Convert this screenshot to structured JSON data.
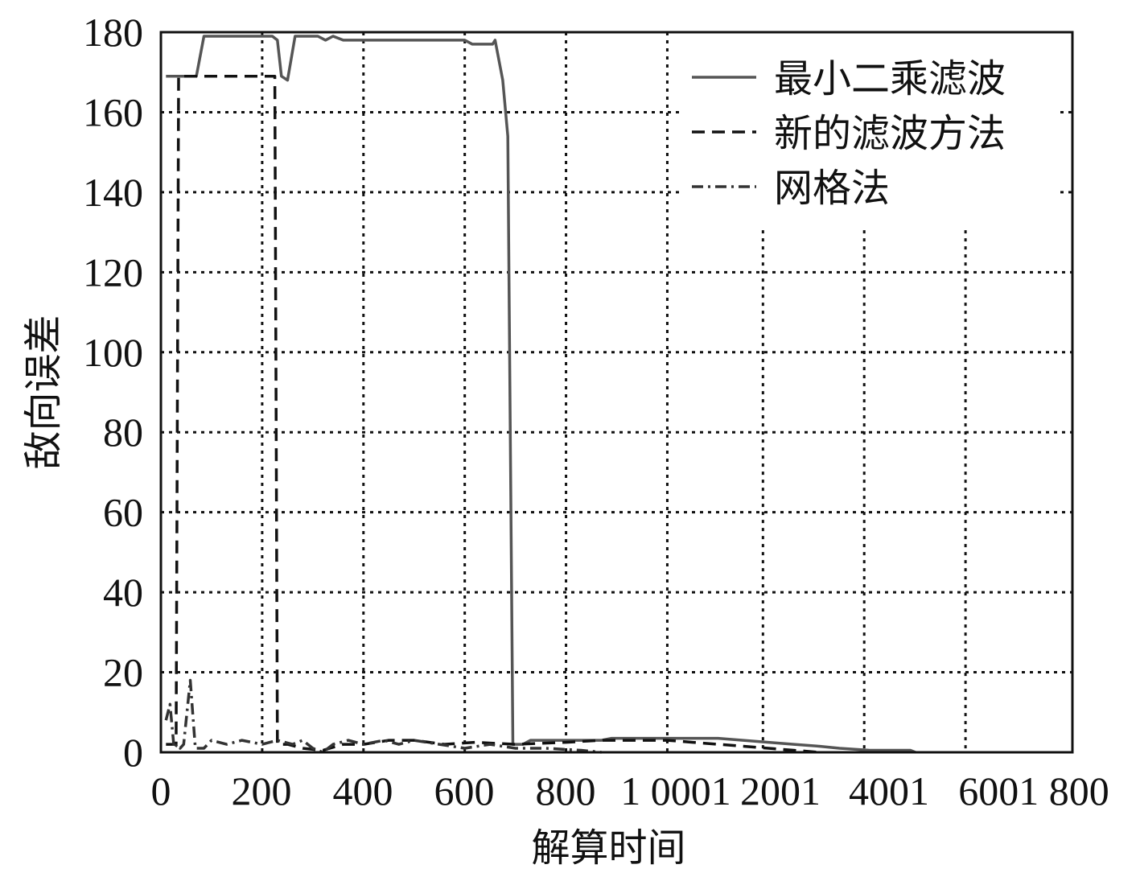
{
  "chart_data": {
    "type": "line",
    "title": "",
    "xlabel": "解算时间",
    "ylabel": "敌向误差",
    "xlim": [
      0,
      1800
    ],
    "ylim": [
      0,
      180
    ],
    "grid": true,
    "grid_style": "dotted",
    "legend_position": "top-right",
    "x_tick_labels": [
      "0",
      "200",
      "400",
      "600",
      "800",
      "1 000",
      "1 200",
      "1 400",
      "1 600",
      "1 800"
    ],
    "x_tick_labels_rendered": [
      "0",
      "200",
      "400",
      "600",
      "800",
      "1 0001",
      "2001",
      "4001",
      "6001 800"
    ],
    "y_ticks": [
      0,
      20,
      40,
      60,
      80,
      100,
      120,
      140,
      160,
      180
    ],
    "series": [
      {
        "name": "最小二乘滤波",
        "color": "#555555",
        "style": "solid",
        "points": [
          [
            10,
            169
          ],
          [
            35,
            169
          ],
          [
            70,
            169
          ],
          [
            85,
            179
          ],
          [
            150,
            179
          ],
          [
            220,
            179
          ],
          [
            230,
            178
          ],
          [
            238,
            169
          ],
          [
            250,
            168
          ],
          [
            265,
            179
          ],
          [
            310,
            179
          ],
          [
            325,
            178
          ],
          [
            340,
            179
          ],
          [
            360,
            178
          ],
          [
            600,
            178
          ],
          [
            615,
            177
          ],
          [
            655,
            177
          ],
          [
            660,
            178
          ],
          [
            675,
            168
          ],
          [
            685,
            154
          ],
          [
            695,
            2
          ],
          [
            715,
            2
          ],
          [
            730,
            3
          ],
          [
            870,
            3
          ],
          [
            890,
            3.5
          ],
          [
            1100,
            3.5
          ],
          [
            1150,
            3
          ],
          [
            1250,
            2
          ],
          [
            1300,
            1.5
          ],
          [
            1340,
            1
          ],
          [
            1400,
            0.5
          ],
          [
            1480,
            0.5
          ],
          [
            1490,
            0
          ]
        ]
      },
      {
        "name": "新的滤波方法",
        "color": "#111111",
        "style": "dashed",
        "points": [
          [
            10,
            2
          ],
          [
            25,
            2
          ],
          [
            30,
            2
          ],
          [
            35,
            169
          ],
          [
            215,
            169
          ],
          [
            225,
            169
          ],
          [
            230,
            2
          ],
          [
            250,
            2
          ],
          [
            280,
            1
          ],
          [
            320,
            0.5
          ],
          [
            360,
            2
          ],
          [
            400,
            2
          ],
          [
            450,
            3
          ],
          [
            500,
            3
          ],
          [
            560,
            2
          ],
          [
            620,
            2.5
          ],
          [
            700,
            2
          ],
          [
            800,
            2.5
          ],
          [
            870,
            3
          ],
          [
            1000,
            3
          ],
          [
            1050,
            2.5
          ],
          [
            1150,
            1.5
          ],
          [
            1200,
            1
          ],
          [
            1250,
            0.5
          ],
          [
            1300,
            0
          ]
        ]
      },
      {
        "name": "网格法",
        "color": "#333333",
        "style": "dashdot",
        "points": [
          [
            10,
            8
          ],
          [
            18,
            12
          ],
          [
            26,
            1
          ],
          [
            32,
            2
          ],
          [
            38,
            1
          ],
          [
            45,
            2
          ],
          [
            58,
            18
          ],
          [
            68,
            1
          ],
          [
            85,
            1
          ],
          [
            100,
            3
          ],
          [
            130,
            2
          ],
          [
            160,
            3
          ],
          [
            200,
            2
          ],
          [
            230,
            3
          ],
          [
            260,
            2
          ],
          [
            280,
            3
          ],
          [
            300,
            1
          ],
          [
            320,
            0
          ],
          [
            340,
            2
          ],
          [
            370,
            3
          ],
          [
            400,
            2
          ],
          [
            440,
            3
          ],
          [
            470,
            2
          ],
          [
            500,
            3
          ],
          [
            550,
            2
          ],
          [
            600,
            1
          ],
          [
            650,
            2
          ],
          [
            700,
            1
          ],
          [
            760,
            1
          ],
          [
            830,
            0.5
          ],
          [
            870,
            0
          ]
        ]
      }
    ]
  }
}
